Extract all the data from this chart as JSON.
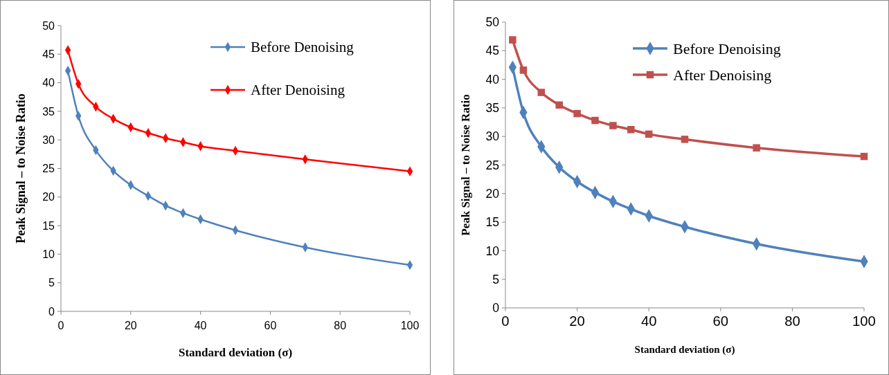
{
  "chart_data": [
    {
      "type": "line",
      "xlabel": "Standard deviation (σ)",
      "ylabel": "Peak Signal – to Noise Ratio",
      "x": [
        2,
        5,
        10,
        15,
        20,
        25,
        30,
        35,
        40,
        50,
        70,
        100
      ],
      "xlim": [
        0,
        100
      ],
      "xticks": [
        0,
        20,
        40,
        60,
        80,
        100
      ],
      "ylim": [
        0,
        50
      ],
      "yticks": [
        0,
        5,
        10,
        15,
        20,
        25,
        30,
        35,
        40,
        45,
        50
      ],
      "legend": "top right",
      "series": [
        {
          "name": "Before Denoising",
          "color": "#4f81bd",
          "marker": "diamond",
          "values": [
            42.1,
            34.2,
            28.2,
            24.6,
            22.1,
            20.2,
            18.5,
            17.2,
            16.1,
            14.2,
            11.2,
            8.1
          ]
        },
        {
          "name": "After Denoising",
          "color": "#ff0000",
          "marker": "diamond",
          "values": [
            45.7,
            39.8,
            35.8,
            33.7,
            32.2,
            31.2,
            30.3,
            29.6,
            28.9,
            28.1,
            26.6,
            24.5
          ]
        }
      ]
    },
    {
      "type": "line",
      "xlabel": "Standard deviation (σ)",
      "ylabel": "Peak Signal – to Noise Ratio",
      "x": [
        2,
        5,
        10,
        15,
        20,
        25,
        30,
        35,
        40,
        50,
        70,
        100
      ],
      "xlim": [
        0,
        100
      ],
      "xticks": [
        0,
        20,
        40,
        60,
        80,
        100
      ],
      "ylim": [
        0,
        50
      ],
      "yticks": [
        0,
        5,
        10,
        15,
        20,
        25,
        30,
        35,
        40,
        45,
        50
      ],
      "legend": "top right",
      "series": [
        {
          "name": "Before Denoising",
          "color": "#4f81bd",
          "marker": "diamond",
          "values": [
            42.1,
            34.2,
            28.2,
            24.6,
            22.1,
            20.2,
            18.6,
            17.3,
            16.1,
            14.2,
            11.2,
            8.1
          ]
        },
        {
          "name": "After Denoising",
          "color": "#c0504d",
          "marker": "square",
          "values": [
            46.9,
            41.6,
            37.7,
            35.5,
            34.0,
            32.8,
            31.9,
            31.2,
            30.4,
            29.5,
            28.0,
            26.5
          ]
        }
      ]
    }
  ]
}
